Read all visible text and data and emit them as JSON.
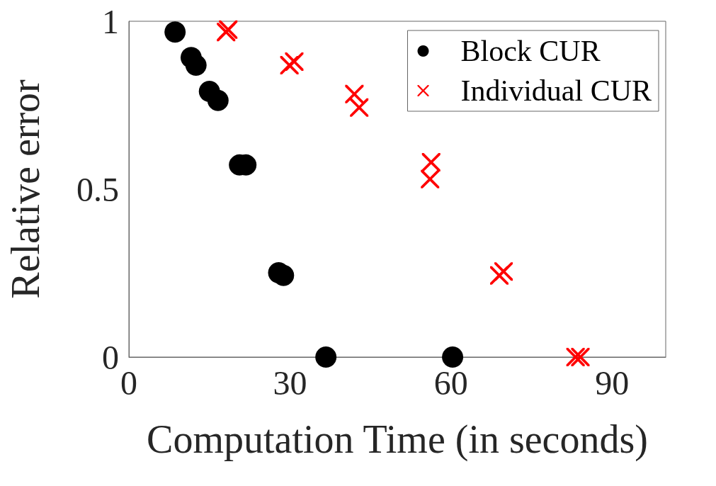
{
  "chart_data": {
    "type": "scatter",
    "xlabel": "Computation Time (in seconds)",
    "ylabel": "Relative error",
    "xlim": [
      0,
      100
    ],
    "xticks": [
      0,
      30,
      60,
      90
    ],
    "ylim": [
      0,
      1
    ],
    "yticks": [
      0,
      0.5,
      1
    ],
    "grid": false,
    "legend": "top right",
    "series": [
      {
        "name": "Block CUR",
        "color": "#000000",
        "marker": "circle",
        "x": [
          8.6,
          11.6,
          12.5,
          15.0,
          16.6,
          20.6,
          21.8,
          27.9,
          28.8,
          36.7,
          60.3
        ],
        "values": [
          0.968,
          0.892,
          0.869,
          0.791,
          0.764,
          0.572,
          0.572,
          0.251,
          0.243,
          0,
          0
        ]
      },
      {
        "name": "Individual CUR",
        "color": "#ff0000",
        "marker": "cross",
        "x": [
          18.1,
          18.5,
          29.9,
          30.8,
          42.0,
          42.9,
          56.3,
          56.1,
          69.0,
          69.8,
          83.2,
          84.1
        ],
        "values": [
          0.968,
          0.975,
          0.869,
          0.88,
          0.783,
          0.743,
          0.58,
          0.53,
          0.243,
          0.255,
          0,
          0
        ]
      }
    ]
  }
}
